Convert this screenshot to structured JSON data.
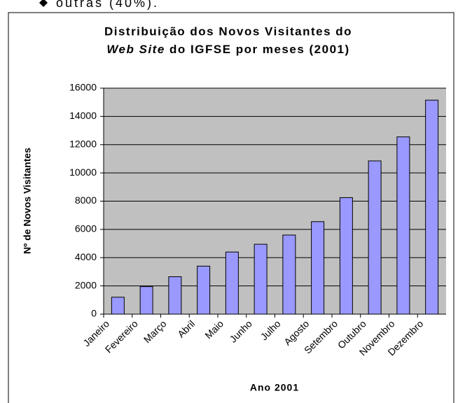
{
  "header_text": "outras (40%).",
  "chart_data": {
    "type": "bar",
    "title_line1": "Distribuição dos Novos Visitantes do",
    "title_line2_italic": "Web Site",
    "title_line2": "do IGFSE por meses (2001)",
    "x_label": "Ano 2001",
    "y_label": "Nº de Novos Visitantes",
    "categories": [
      "Janeiro",
      "Fevereiro",
      "Março",
      "Abril",
      "Maio",
      "Junho",
      "Julho",
      "Agosto",
      "Setembro",
      "Outubro",
      "Novembro",
      "Dezembro"
    ],
    "values": [
      1200,
      1950,
      2650,
      3400,
      4400,
      4950,
      5600,
      6550,
      8250,
      10850,
      12550,
      15150
    ],
    "color": "#9999ff",
    "ylim": [
      0,
      16000
    ],
    "yticks": [
      0,
      2000,
      4000,
      6000,
      8000,
      10000,
      12000,
      14000,
      16000
    ],
    "grid": true
  }
}
